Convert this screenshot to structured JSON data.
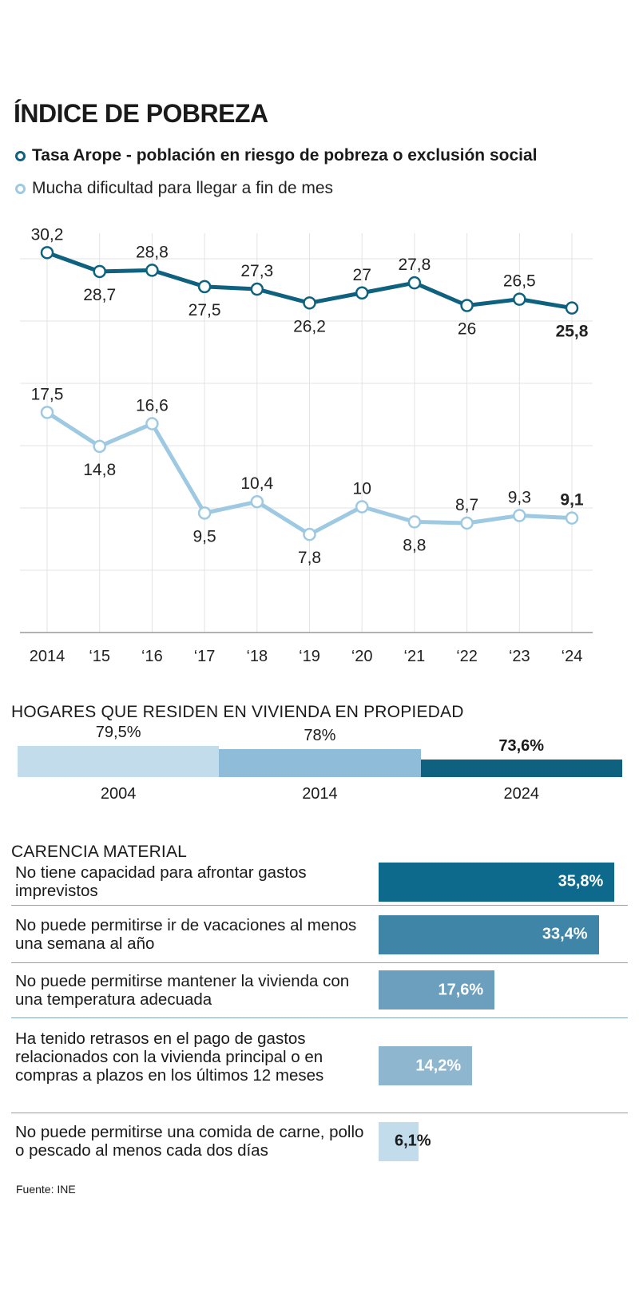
{
  "title": "ÍNDICE DE POBREZA",
  "legend": {
    "series1": "Tasa Arope - población en riesgo de pobreza o exclusión social",
    "series2": "Mucha dificultad para llegar a fin de mes"
  },
  "colors": {
    "dark": "#0e617f",
    "light": "#9ec9e2",
    "grid": "#e3e3e3",
    "axis": "#999999"
  },
  "chart_data": [
    {
      "type": "line",
      "title": "ÍNDICE DE POBREZA",
      "categories": [
        "2014",
        "‘15",
        "‘16",
        "‘17",
        "‘18",
        "‘19",
        "‘20",
        "‘21",
        "‘22",
        "‘23",
        "‘24"
      ],
      "series": [
        {
          "name": "Tasa Arope - población en riesgo de pobreza o exclusión social",
          "values": [
            30.2,
            28.7,
            28.8,
            27.5,
            27.3,
            26.2,
            27,
            27.8,
            26,
            26.5,
            25.8
          ],
          "labels": [
            "30,2",
            "28,7",
            "28,8",
            "27,5",
            "27,3",
            "26,2",
            "27",
            "27,8",
            "26",
            "26,5",
            "25,8"
          ],
          "label_pos": [
            "above",
            "below",
            "above",
            "below",
            "above",
            "below",
            "above",
            "above",
            "below",
            "above",
            "below"
          ]
        },
        {
          "name": "Mucha dificultad para llegar a fin de mes",
          "values": [
            17.5,
            14.8,
            16.6,
            9.5,
            10.4,
            7.8,
            10,
            8.8,
            8.7,
            9.3,
            9.1
          ],
          "labels": [
            "17,5",
            "14,8",
            "16,6",
            "9,5",
            "10,4",
            "7,8",
            "10",
            "8,8",
            "8,7",
            "9,3",
            "9,1"
          ],
          "label_pos": [
            "above",
            "below",
            "above",
            "below",
            "above",
            "below",
            "above",
            "below",
            "above",
            "above",
            "above"
          ]
        }
      ],
      "ylim": [
        0,
        31.5
      ],
      "grid": true
    },
    {
      "type": "bar",
      "title": "HOGARES QUE RESIDEN EN VIVIENDA EN PROPIEDAD",
      "categories": [
        "2004",
        "2014",
        "2024"
      ],
      "values": [
        79.5,
        78,
        73.6
      ],
      "labels": [
        "79,5%",
        "78%",
        "73,6%"
      ]
    },
    {
      "type": "bar",
      "title": "CARENCIA MATERIAL",
      "categories": [
        "No tiene capacidad para afrontar gastos imprevistos",
        "No puede permitirse ir de vacaciones al menos una semana al año",
        "No puede permitirse mantener la vivienda con una temperatura adecuada",
        "Ha tenido retrasos en el pago de gastos relacionados con la vivienda principal o en compras a plazos en los últimos 12 meses",
        "No puede permitirse una comida de carne, pollo o pescado al menos cada dos días"
      ],
      "values": [
        35.8,
        33.4,
        17.6,
        14.2,
        6.1
      ],
      "labels": [
        "35,8%",
        "33,4%",
        "17,6%",
        "14,2%",
        "6,1%"
      ]
    }
  ],
  "ownership": {
    "title": "HOGARES QUE RESIDEN EN VIVIENDA EN PROPIEDAD",
    "items": [
      {
        "year": "2004",
        "label": "79,5%",
        "value": 79.5,
        "color": "#c3dceb"
      },
      {
        "year": "2014",
        "label": "78%",
        "value": 78,
        "color": "#8fbcd8"
      },
      {
        "year": "2024",
        "label": "73,6%",
        "value": 73.6,
        "color": "#0e617f"
      }
    ]
  },
  "carencia": {
    "title": "CARENCIA MATERIAL",
    "rows": [
      {
        "label": "No tiene capacidad para afrontar gastos imprevistos",
        "value": 35.8,
        "value_label": "35,8%",
        "color": "#0e6a8c"
      },
      {
        "label": "No puede permitirse ir de vacaciones al menos una semana al año",
        "value": 33.4,
        "value_label": "33,4%",
        "color": "#3f85a8"
      },
      {
        "label": "No puede permitirse mantener la vivienda con una temperatura adecuada",
        "value": 17.6,
        "value_label": "17,6%",
        "color": "#6b9fbd"
      },
      {
        "label": "Ha tenido retrasos en el pago de gastos relacionados con la vivienda principal o en compras a plazos en los últimos 12 meses",
        "value": 14.2,
        "value_label": "14,2%",
        "color": "#8fb6cf"
      },
      {
        "label": "No puede permitirse una comida de carne, pollo o pescado al menos cada dos días",
        "value": 6.1,
        "value_label": "6,1%",
        "color": "#c3dceb"
      }
    ]
  },
  "source": "Fuente: INE"
}
